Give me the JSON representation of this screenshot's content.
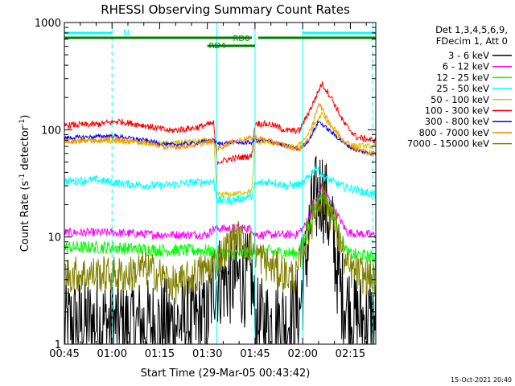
{
  "chart_data": {
    "type": "line",
    "title": "RHESSI Observing Summary Count Rates",
    "xlabel": "Start Time (29-Mar-05 00:43:42)",
    "ylabel_main": "Count Rate (s",
    "ylabel_sup1": "-1",
    "ylabel_mid": " detector",
    "ylabel_sup2": "-1",
    "ylabel_end": ")",
    "xlim_min": [
      45,
      143
    ],
    "y_scale": "log",
    "ylim": [
      1,
      1000
    ],
    "x_ticks": [
      "00:45",
      "01:00",
      "01:15",
      "01:30",
      "01:45",
      "02:00",
      "02:15"
    ],
    "y_ticks": [
      "1",
      "10",
      "100",
      "1000"
    ],
    "footer": "15-Oct-2021 20:40",
    "legend_header": [
      "Det 1,3,4,5,6,9,",
      "FDecim 1, Att 0"
    ],
    "bands": [
      {
        "label": "N",
        "color": "#00ffff",
        "segments": [
          [
            45,
            60
          ],
          [
            120,
            143
          ]
        ]
      },
      {
        "label": "RD0",
        "color": "#008000",
        "segments": [
          [
            45,
            104
          ],
          [
            106,
            143
          ]
        ]
      },
      {
        "label": "RD4",
        "color": "#008000",
        "segments": [
          [
            90,
            105
          ]
        ]
      }
    ],
    "vlines": [
      {
        "x": 60,
        "style": "dashed"
      },
      {
        "x": 93,
        "style": "solid"
      },
      {
        "x": 105,
        "style": "solid"
      },
      {
        "x": 120,
        "style": "solid"
      },
      {
        "x": 142,
        "style": "dashed"
      }
    ],
    "series": [
      {
        "name": "3 - 6 keV",
        "color": "#000000",
        "noise": 0.9,
        "points": [
          [
            45,
            1.5
          ],
          [
            55,
            1.6
          ],
          [
            65,
            1.5
          ],
          [
            75,
            1.5
          ],
          [
            85,
            1.6
          ],
          [
            90,
            1.7
          ],
          [
            92,
            4
          ],
          [
            100,
            4
          ],
          [
            104,
            4
          ],
          [
            105,
            1.5
          ],
          [
            115,
            1.6
          ],
          [
            119,
            2
          ],
          [
            123,
            18
          ],
          [
            126,
            28
          ],
          [
            129,
            12
          ],
          [
            132,
            3
          ],
          [
            136,
            1.8
          ],
          [
            142,
            1.6
          ]
        ]
      },
      {
        "name": "6 - 12 keV",
        "color": "#ff00ff",
        "noise": 0.08,
        "points": [
          [
            45,
            11
          ],
          [
            60,
            11
          ],
          [
            75,
            10.5
          ],
          [
            90,
            10.5
          ],
          [
            92,
            12
          ],
          [
            100,
            12
          ],
          [
            104,
            12
          ],
          [
            105,
            10.5
          ],
          [
            118,
            10.5
          ],
          [
            121,
            13
          ],
          [
            126,
            30
          ],
          [
            130,
            18
          ],
          [
            134,
            11
          ],
          [
            142,
            10.5
          ]
        ]
      },
      {
        "name": "12 - 25 keV",
        "color": "#00ff00",
        "noise": 0.12,
        "points": [
          [
            45,
            8
          ],
          [
            60,
            8
          ],
          [
            75,
            7.5
          ],
          [
            90,
            7.5
          ],
          [
            93,
            7
          ],
          [
            104,
            7
          ],
          [
            105,
            7.5
          ],
          [
            118,
            7
          ],
          [
            121,
            10
          ],
          [
            126,
            28
          ],
          [
            130,
            15
          ],
          [
            134,
            7
          ],
          [
            142,
            6.5
          ]
        ]
      },
      {
        "name": "25 - 50 keV",
        "color": "#00ffff",
        "noise": 0.08,
        "points": [
          [
            45,
            33
          ],
          [
            55,
            34
          ],
          [
            65,
            31
          ],
          [
            75,
            30
          ],
          [
            85,
            32
          ],
          [
            92,
            33
          ],
          [
            93,
            22
          ],
          [
            98,
            22
          ],
          [
            104,
            24
          ],
          [
            105,
            31
          ],
          [
            110,
            33
          ],
          [
            115,
            30
          ],
          [
            120,
            31
          ],
          [
            124,
            44
          ],
          [
            127,
            36
          ],
          [
            132,
            30
          ],
          [
            138,
            27
          ],
          [
            142,
            25
          ]
        ]
      },
      {
        "name": "50 - 100 keV",
        "color": "#d4c800",
        "noise": 0.05,
        "points": [
          [
            45,
            78
          ],
          [
            55,
            80
          ],
          [
            65,
            77
          ],
          [
            75,
            74
          ],
          [
            85,
            78
          ],
          [
            92,
            80
          ],
          [
            93,
            25
          ],
          [
            98,
            25
          ],
          [
            104,
            27
          ],
          [
            105,
            76
          ],
          [
            110,
            76
          ],
          [
            118,
            68
          ],
          [
            121,
            85
          ],
          [
            126,
            140
          ],
          [
            130,
            95
          ],
          [
            134,
            72
          ],
          [
            142,
            70
          ]
        ]
      },
      {
        "name": "100 - 300 keV",
        "color": "#ff0000",
        "noise": 0.06,
        "points": [
          [
            45,
            110
          ],
          [
            55,
            112
          ],
          [
            62,
            120
          ],
          [
            70,
            110
          ],
          [
            78,
            98
          ],
          [
            86,
            104
          ],
          [
            92,
            115
          ],
          [
            93,
            50
          ],
          [
            98,
            54
          ],
          [
            104,
            57
          ],
          [
            105,
            115
          ],
          [
            110,
            112
          ],
          [
            115,
            98
          ],
          [
            119,
            98
          ],
          [
            123,
            170
          ],
          [
            126,
            270
          ],
          [
            129,
            200
          ],
          [
            133,
            115
          ],
          [
            137,
            85
          ],
          [
            142,
            80
          ]
        ]
      },
      {
        "name": "300 - 800 keV",
        "color": "#0000ff",
        "noise": 0.04,
        "points": [
          [
            45,
            84
          ],
          [
            55,
            86
          ],
          [
            60,
            88
          ],
          [
            70,
            80
          ],
          [
            78,
            72
          ],
          [
            86,
            75
          ],
          [
            92,
            80
          ],
          [
            93,
            74
          ],
          [
            98,
            76
          ],
          [
            104,
            76
          ],
          [
            105,
            80
          ],
          [
            110,
            78
          ],
          [
            115,
            70
          ],
          [
            119,
            66
          ],
          [
            122,
            80
          ],
          [
            125,
            120
          ],
          [
            129,
            95
          ],
          [
            133,
            75
          ],
          [
            137,
            64
          ],
          [
            142,
            60
          ]
        ]
      },
      {
        "name": "800 - 7000 keV",
        "color": "#ff8c00",
        "noise": 0.05,
        "points": [
          [
            45,
            78
          ],
          [
            55,
            80
          ],
          [
            60,
            82
          ],
          [
            70,
            76
          ],
          [
            78,
            68
          ],
          [
            86,
            72
          ],
          [
            92,
            78
          ],
          [
            93,
            66
          ],
          [
            98,
            78
          ],
          [
            104,
            84
          ],
          [
            105,
            85
          ],
          [
            110,
            78
          ],
          [
            115,
            70
          ],
          [
            119,
            66
          ],
          [
            122,
            82
          ],
          [
            125,
            180
          ],
          [
            129,
            110
          ],
          [
            133,
            80
          ],
          [
            137,
            66
          ],
          [
            142,
            60
          ]
        ]
      },
      {
        "name": "7000 - 15000 keV",
        "color": "#808000",
        "noise": 0.35,
        "points": [
          [
            45,
            4.5
          ],
          [
            55,
            4.5
          ],
          [
            65,
            4.4
          ],
          [
            70,
            5.2
          ],
          [
            75,
            4.4
          ],
          [
            80,
            3.5
          ],
          [
            85,
            4.2
          ],
          [
            92,
            5.5
          ],
          [
            94,
            6.5
          ],
          [
            99,
            10
          ],
          [
            104,
            8
          ],
          [
            109,
            5.5
          ],
          [
            114,
            4.5
          ],
          [
            118,
            4.2
          ],
          [
            121,
            10
          ],
          [
            126,
            25
          ],
          [
            130,
            14
          ],
          [
            134,
            5
          ],
          [
            142,
            4
          ]
        ]
      }
    ]
  }
}
